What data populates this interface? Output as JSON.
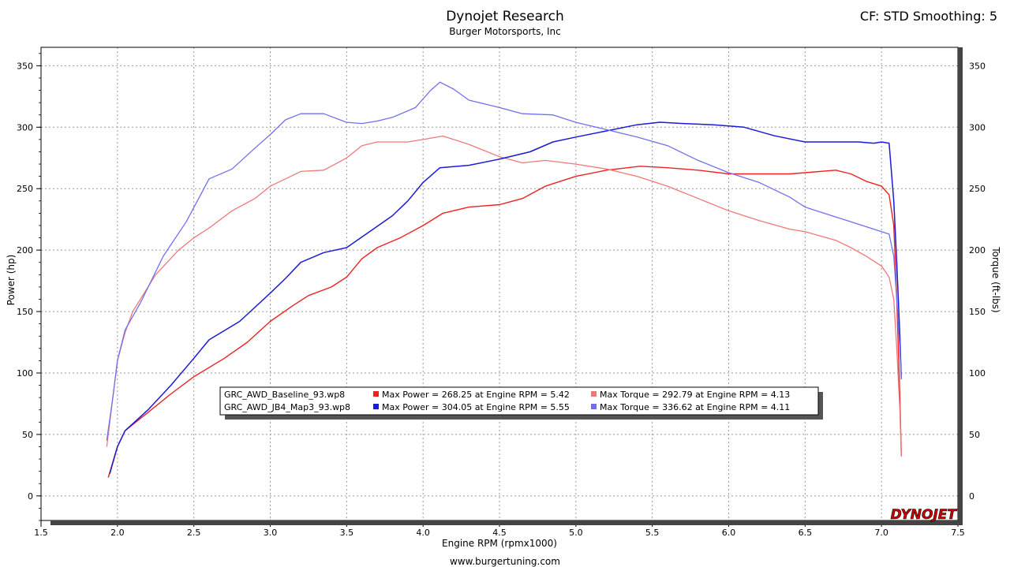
{
  "chart_data": {
    "type": "line",
    "title": "Dynojet Research",
    "subtitle": "Burger Motorsports, Inc",
    "corner_label": "CF: STD Smoothing: 5",
    "footer": "www.burgertuning.com",
    "logo_text": "DYNOJET",
    "xlabel": "Engine RPM (rpmx1000)",
    "ylabel": "Power (hp)",
    "y2label": "Torque (ft-lbs)",
    "xlim": [
      1.5,
      7.5
    ],
    "ylim": [
      -20,
      365
    ],
    "x_ticks": [
      "1.5",
      "2.0",
      "2.5",
      "3.0",
      "3.5",
      "4.0",
      "4.5",
      "5.0",
      "5.5",
      "6.0",
      "6.5",
      "7.0",
      "7.5"
    ],
    "y_ticks": [
      "0",
      "50",
      "100",
      "150",
      "200",
      "250",
      "300",
      "350"
    ],
    "y2_ticks": [
      "0",
      "50",
      "100",
      "150",
      "200",
      "250",
      "300",
      "350"
    ],
    "grid": true,
    "legend": [
      {
        "file": "GRC_AWD_Baseline_93.wp8",
        "power": "Max Power = 268.25 at Engine RPM = 5.42",
        "torque": "Max Torque = 292.79 at Engine RPM = 4.13",
        "power_color": "#ee2222",
        "torque_color": "#f07878"
      },
      {
        "file": "GRC_AWD_JB4_Map3_93.wp8",
        "power": "Max Power = 304.05 at Engine RPM = 5.55",
        "torque": "Max Torque = 336.62 at Engine RPM = 4.11",
        "power_color": "#1a1ad8",
        "torque_color": "#7070ee"
      }
    ],
    "series": [
      {
        "name": "GRC_AWD_Baseline_93.wp8 Power",
        "color": "#ee2222",
        "width": 1.4,
        "points": [
          [
            1.94,
            15
          ],
          [
            2.0,
            40
          ],
          [
            2.05,
            53
          ],
          [
            2.2,
            68
          ],
          [
            2.35,
            83
          ],
          [
            2.5,
            97
          ],
          [
            2.7,
            112
          ],
          [
            2.85,
            125
          ],
          [
            3.0,
            142
          ],
          [
            3.15,
            155
          ],
          [
            3.25,
            163
          ],
          [
            3.4,
            170
          ],
          [
            3.5,
            178
          ],
          [
            3.6,
            193
          ],
          [
            3.7,
            202
          ],
          [
            3.85,
            210
          ],
          [
            4.0,
            220
          ],
          [
            4.13,
            230
          ],
          [
            4.3,
            235
          ],
          [
            4.5,
            237
          ],
          [
            4.65,
            242
          ],
          [
            4.8,
            252
          ],
          [
            5.0,
            260
          ],
          [
            5.2,
            265
          ],
          [
            5.42,
            268.25
          ],
          [
            5.6,
            267
          ],
          [
            5.8,
            265
          ],
          [
            6.0,
            262
          ],
          [
            6.2,
            262
          ],
          [
            6.4,
            262
          ],
          [
            6.5,
            263
          ],
          [
            6.7,
            265
          ],
          [
            6.8,
            262
          ],
          [
            6.9,
            256
          ],
          [
            7.0,
            252
          ],
          [
            7.05,
            245
          ],
          [
            7.08,
            220
          ],
          [
            7.1,
            160
          ],
          [
            7.12,
            80
          ],
          [
            7.13,
            33
          ]
        ]
      },
      {
        "name": "GRC_AWD_Baseline_93.wp8 Torque",
        "color": "#f07878",
        "width": 1.3,
        "points": [
          [
            1.93,
            40
          ],
          [
            1.97,
            80
          ],
          [
            2.0,
            110
          ],
          [
            2.05,
            133
          ],
          [
            2.1,
            150
          ],
          [
            2.25,
            180
          ],
          [
            2.4,
            200
          ],
          [
            2.5,
            210
          ],
          [
            2.6,
            218
          ],
          [
            2.75,
            232
          ],
          [
            2.9,
            242
          ],
          [
            3.0,
            252
          ],
          [
            3.1,
            258
          ],
          [
            3.2,
            264
          ],
          [
            3.35,
            265
          ],
          [
            3.5,
            275
          ],
          [
            3.6,
            285
          ],
          [
            3.7,
            288
          ],
          [
            3.9,
            288
          ],
          [
            4.0,
            290
          ],
          [
            4.13,
            292.79
          ],
          [
            4.3,
            286
          ],
          [
            4.5,
            276
          ],
          [
            4.65,
            271
          ],
          [
            4.8,
            273
          ],
          [
            5.0,
            270
          ],
          [
            5.2,
            266
          ],
          [
            5.4,
            260
          ],
          [
            5.6,
            252
          ],
          [
            5.8,
            242
          ],
          [
            6.0,
            232
          ],
          [
            6.2,
            224
          ],
          [
            6.4,
            217
          ],
          [
            6.5,
            215
          ],
          [
            6.7,
            208
          ],
          [
            6.8,
            202
          ],
          [
            6.9,
            195
          ],
          [
            7.0,
            187
          ],
          [
            7.05,
            178
          ],
          [
            7.08,
            160
          ],
          [
            7.1,
            120
          ],
          [
            7.12,
            70
          ],
          [
            7.13,
            32
          ]
        ]
      },
      {
        "name": "GRC_AWD_JB4_Map3_93.wp8 Power",
        "color": "#1a1ad8",
        "width": 1.5,
        "points": [
          [
            1.95,
            18
          ],
          [
            2.0,
            40
          ],
          [
            2.05,
            53
          ],
          [
            2.2,
            70
          ],
          [
            2.35,
            90
          ],
          [
            2.5,
            112
          ],
          [
            2.6,
            127
          ],
          [
            2.8,
            142
          ],
          [
            3.0,
            165
          ],
          [
            3.1,
            177
          ],
          [
            3.2,
            190
          ],
          [
            3.35,
            198
          ],
          [
            3.5,
            202
          ],
          [
            3.65,
            215
          ],
          [
            3.8,
            228
          ],
          [
            3.9,
            240
          ],
          [
            4.0,
            255
          ],
          [
            4.11,
            267
          ],
          [
            4.3,
            269
          ],
          [
            4.5,
            274
          ],
          [
            4.7,
            280
          ],
          [
            4.85,
            288
          ],
          [
            5.0,
            292
          ],
          [
            5.2,
            297
          ],
          [
            5.4,
            302
          ],
          [
            5.55,
            304.05
          ],
          [
            5.7,
            303
          ],
          [
            5.9,
            302
          ],
          [
            6.1,
            300
          ],
          [
            6.3,
            293
          ],
          [
            6.5,
            288
          ],
          [
            6.7,
            288
          ],
          [
            6.85,
            288
          ],
          [
            6.95,
            287
          ],
          [
            7.0,
            288
          ],
          [
            7.05,
            287
          ],
          [
            7.08,
            240
          ],
          [
            7.1,
            190
          ],
          [
            7.12,
            130
          ],
          [
            7.13,
            95
          ]
        ]
      },
      {
        "name": "GRC_AWD_JB4_Map3_93.wp8 Torque",
        "color": "#7070ee",
        "width": 1.3,
        "points": [
          [
            1.93,
            45
          ],
          [
            1.97,
            80
          ],
          [
            2.0,
            110
          ],
          [
            2.05,
            135
          ],
          [
            2.15,
            157
          ],
          [
            2.3,
            195
          ],
          [
            2.45,
            223
          ],
          [
            2.6,
            258
          ],
          [
            2.75,
            266
          ],
          [
            2.9,
            283
          ],
          [
            3.0,
            294
          ],
          [
            3.1,
            306
          ],
          [
            3.2,
            311
          ],
          [
            3.35,
            311
          ],
          [
            3.5,
            304
          ],
          [
            3.6,
            303
          ],
          [
            3.7,
            305
          ],
          [
            3.8,
            308
          ],
          [
            3.95,
            316
          ],
          [
            4.05,
            330
          ],
          [
            4.11,
            336.62
          ],
          [
            4.2,
            331
          ],
          [
            4.3,
            322
          ],
          [
            4.5,
            316
          ],
          [
            4.65,
            311
          ],
          [
            4.85,
            310
          ],
          [
            5.0,
            304
          ],
          [
            5.2,
            298
          ],
          [
            5.4,
            292
          ],
          [
            5.6,
            285
          ],
          [
            5.8,
            273
          ],
          [
            6.0,
            263
          ],
          [
            6.2,
            255
          ],
          [
            6.4,
            243
          ],
          [
            6.5,
            235
          ],
          [
            6.7,
            227
          ],
          [
            6.8,
            223
          ],
          [
            6.9,
            219
          ],
          [
            7.0,
            215
          ],
          [
            7.05,
            213
          ],
          [
            7.08,
            195
          ],
          [
            7.1,
            160
          ],
          [
            7.12,
            120
          ],
          [
            7.13,
            95
          ]
        ]
      }
    ]
  }
}
